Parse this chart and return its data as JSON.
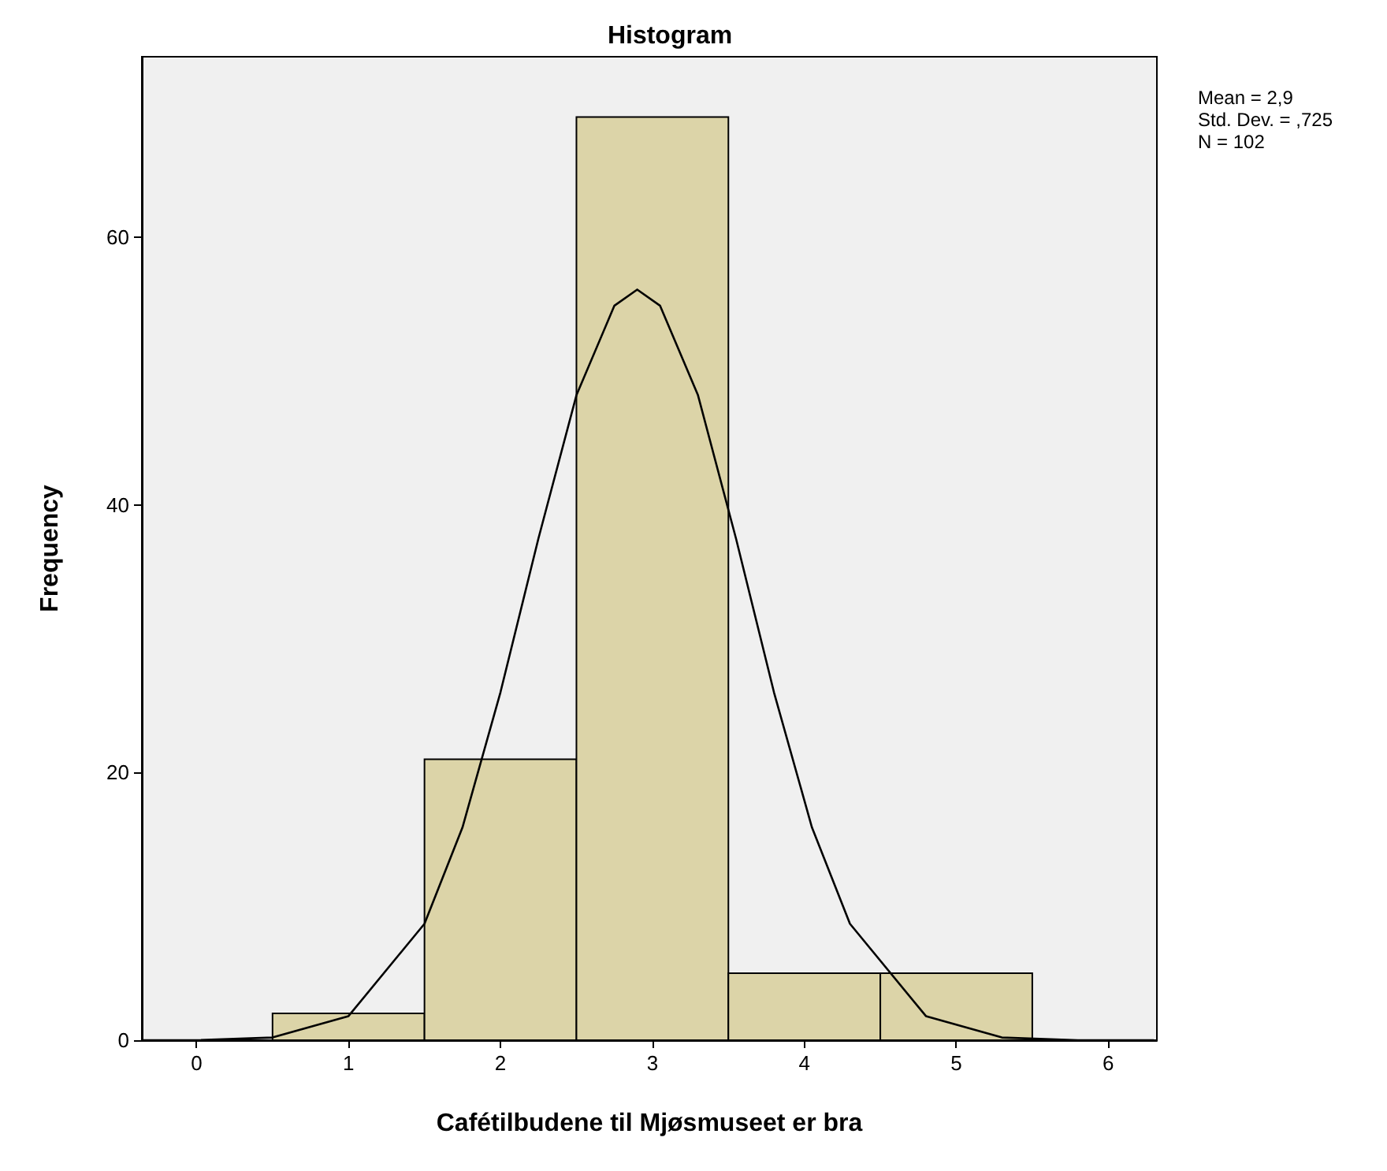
{
  "chart_data": {
    "type": "histogram",
    "title": "Histogram",
    "xlabel": "Cafétilbudene til Mjøsmuseet er bra",
    "ylabel": "Frequency",
    "bins": [
      0.5,
      1.5,
      2.5,
      3.5,
      4.5,
      5.5
    ],
    "values": [
      2,
      21,
      69,
      5,
      5
    ],
    "color": "#dcd4a8",
    "series": [
      {
        "type": "line",
        "color": "#000000",
        "x": [
          -0.35,
          0,
          0.5,
          1,
          1.5,
          1.75,
          2,
          2.25,
          2.5,
          2.75,
          2.9,
          3.05,
          3.3,
          3.55,
          3.8,
          4.05,
          4.3,
          4.8,
          5.3,
          5.8,
          6.3
        ],
        "values": [
          0,
          0,
          0.2,
          1.8,
          8.7,
          15.9,
          26,
          37.5,
          48.2,
          54.9,
          56.1,
          54.9,
          48.2,
          37.5,
          26,
          15.9,
          8.7,
          1.8,
          0.2,
          0,
          0
        ]
      }
    ],
    "xlim": [
      -0.36,
      6.32
    ],
    "xticks": [
      0,
      1,
      2,
      3,
      4,
      5,
      6
    ],
    "ylim": [
      0,
      73.5
    ],
    "yticks": [
      0,
      20,
      40,
      60
    ],
    "grid": false,
    "marker": "none",
    "annotations": [
      "Mean = 2,9",
      "Std. Dev. = ,725",
      "N = 102"
    ]
  }
}
